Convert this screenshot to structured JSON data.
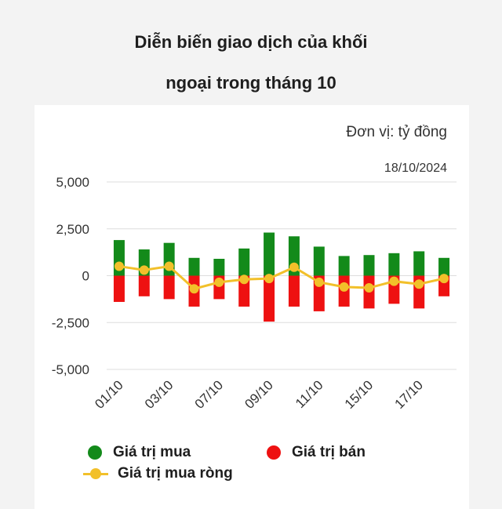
{
  "title_line1": "Diễn biến giao dịch của khối",
  "title_line2": "ngoại trong tháng 10",
  "unit_note": "Đơn vị: tỷ đồng",
  "date_note": "18/10/2024",
  "colors": {
    "buy": "#138a1a",
    "sell": "#ee1111",
    "net": "#f2c02a",
    "grid": "#dddddd",
    "axis_text": "#333333"
  },
  "legend": {
    "buy": "Giá trị mua",
    "sell": "Giá trị bán",
    "net": "Giá trị mua ròng"
  },
  "chart_data": {
    "type": "bar",
    "categories": [
      "01/10",
      "02/10",
      "03/10",
      "04/10",
      "07/10",
      "08/10",
      "09/10",
      "10/10",
      "11/10",
      "14/10",
      "15/10",
      "16/10",
      "17/10",
      "18/10"
    ],
    "tick_labels_shown": [
      "01/10",
      "03/10",
      "07/10",
      "09/10",
      "11/10",
      "15/10",
      "17/10"
    ],
    "series": [
      {
        "name": "Giá trị mua",
        "kind": "bar",
        "values": [
          1900,
          1400,
          1750,
          950,
          900,
          1450,
          2300,
          2100,
          1550,
          1050,
          1100,
          1200,
          1300,
          950
        ]
      },
      {
        "name": "Giá trị bán",
        "kind": "bar",
        "values": [
          -1400,
          -1100,
          -1250,
          -1650,
          -1250,
          -1650,
          -2450,
          -1650,
          -1900,
          -1650,
          -1750,
          -1500,
          -1750,
          -1100
        ]
      },
      {
        "name": "Giá trị mua ròng",
        "kind": "line",
        "values": [
          500,
          300,
          500,
          -700,
          -350,
          -200,
          -150,
          450,
          -350,
          -600,
          -650,
          -300,
          -450,
          -150
        ]
      }
    ],
    "y_ticks": [
      5000,
      2500,
      0,
      -2500,
      -5000
    ],
    "y_tick_labels": [
      "5,000",
      "2,500",
      "0",
      "-2,500",
      "-5,000"
    ],
    "ylim": [
      -5000,
      5000
    ],
    "grid": true,
    "legend_position": "bottom"
  }
}
